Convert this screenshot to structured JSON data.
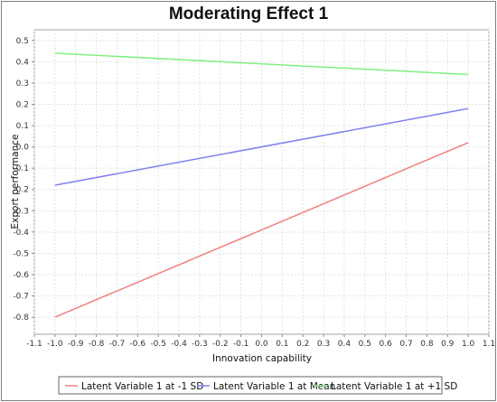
{
  "chart_data": {
    "type": "line",
    "title": "Moderating Effect 1",
    "xlabel": "Innovation capability",
    "ylabel": "Export performance",
    "xlim": [
      -1.1,
      1.1
    ],
    "ylim": [
      -0.88,
      0.55
    ],
    "x_ticks": [
      -1.1,
      -1.0,
      -0.9,
      -0.8,
      -0.7,
      -0.6,
      -0.5,
      -0.4,
      -0.3,
      -0.2,
      -0.1,
      0.0,
      0.1,
      0.2,
      0.3,
      0.4,
      0.5,
      0.6,
      0.7,
      0.8,
      0.9,
      1.0,
      1.1
    ],
    "x_tick_labels": [
      "-1.1",
      "-1.0",
      "-0.9",
      "-0.8",
      "-0.7",
      "-0.6",
      "-0.5",
      "-0.4",
      "-0.3",
      "-0.2",
      "-0.1",
      "0.0",
      "0.1",
      "0.2",
      "0.3",
      "0.4",
      "0.5",
      "0.6",
      "0.7",
      "0.8",
      "0.9",
      "1.0",
      "1.1"
    ],
    "y_ticks": [
      0.5,
      0.4,
      0.3,
      0.2,
      0.1,
      0.0,
      -0.1,
      -0.2,
      -0.3,
      -0.4,
      -0.5,
      -0.6,
      -0.7,
      -0.8
    ],
    "y_tick_labels": [
      "0.5",
      "0.4",
      "0.3",
      "0.2",
      "0.1",
      "0.0",
      "-0.1",
      "-0.2",
      "-0.3",
      "-0.4",
      "-0.5",
      "-0.6",
      "-0.7",
      "-0.8"
    ],
    "grid": true,
    "legend_position": "bottom",
    "series": [
      {
        "name": "Latent Variable 1 at -1 SD",
        "color": "#f08080",
        "x": [
          -1.0,
          1.0
        ],
        "y": [
          -0.8,
          0.02
        ]
      },
      {
        "name": "Latent Variable 1 at Mean",
        "color": "#8080f0",
        "x": [
          -1.0,
          1.0
        ],
        "y": [
          -0.18,
          0.18
        ]
      },
      {
        "name": "Latent Variable 1 at +1 SD",
        "color": "#80f080",
        "x": [
          -1.0,
          1.0
        ],
        "y": [
          0.44,
          0.34
        ]
      }
    ]
  }
}
